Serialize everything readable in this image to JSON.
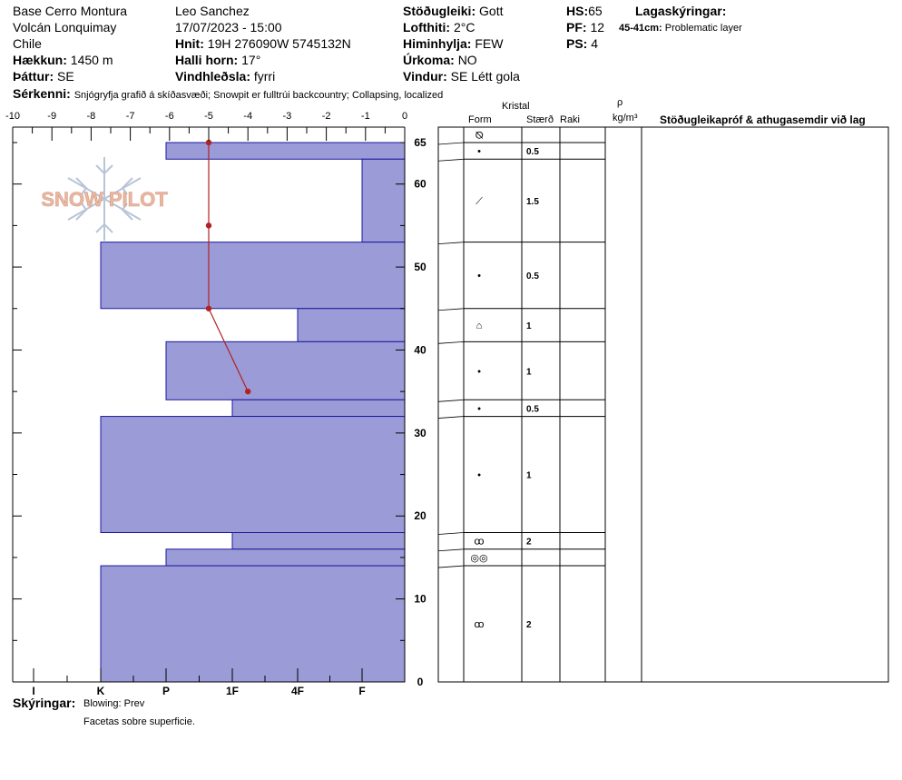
{
  "header": {
    "location": [
      "Base Cerro Montura",
      "Volcán Lonquimay",
      "Chile"
    ],
    "elevation_label": "Hækkun:",
    "elevation": "1450 m",
    "aspect_label": "Þáttur:",
    "aspect": "SE",
    "observer": "Leo Sanchez",
    "datetime": "17/07/2023 - 15:00",
    "coords_label": "Hnit:",
    "coords": "19H 276090W 5745132N",
    "slope_label": "Halli horn:",
    "slope": "17°",
    "wind_loading_label": "Vindhleðsla:",
    "wind_loading": "fyrri",
    "stability_label": "Stöðugleiki:",
    "stability": "Gott",
    "air_temp_label": "Lofthiti:",
    "air_temp": "2°C",
    "sky_label": "Himinhylja:",
    "sky": "FEW",
    "precip_label": "Úrkoma:",
    "precip": "NO",
    "wind_label": "Vindur:",
    "wind": "SE Létt gola",
    "hs_label": "HS:",
    "hs": "65",
    "pf_label": "PF:",
    "pf": "12",
    "ps_label": "PS:",
    "ps": "4",
    "layer_notes_label": "Lagaskýringar:",
    "layer_note_depth": "45-41cm:",
    "layer_note_text": "Problematic layer",
    "features_label": "Sérkenni:",
    "features": "Snjógryfja grafið á skíðasvæði; Snowpit er fulltrúi backcountry; Collapsing, localized"
  },
  "logo_text": "SNOW PILOT",
  "table_headers": {
    "kristal": "Kristal",
    "form": "Form",
    "size": "Stærð",
    "moisture": "Raki",
    "rho": "ρ",
    "density_unit": "kg/m³",
    "comments": "Stöðugleikapróf & athugasemdir við lag"
  },
  "footer": {
    "comments_label": "Skýringar:",
    "comment_lines": [
      "Blowing: Prev",
      "Facetas sobre superficie."
    ]
  },
  "chart_data": {
    "type": "bar",
    "top_axis": {
      "label_values": [
        -10,
        -9,
        -8,
        -7,
        -6,
        -5,
        -4,
        -3,
        -2,
        -1,
        0
      ]
    },
    "bottom_axis": {
      "ticks": [
        "I",
        "K",
        "P",
        "1F",
        "4F",
        "F"
      ]
    },
    "y_axis": {
      "range": [
        0,
        65
      ],
      "labels": [
        0,
        10,
        20,
        30,
        40,
        50,
        60,
        65
      ]
    },
    "hardness_layers": [
      {
        "bottom": 63,
        "top": 65,
        "hardness": "P"
      },
      {
        "bottom": 53,
        "top": 63,
        "hardness": "F"
      },
      {
        "bottom": 45,
        "top": 53,
        "hardness": "K"
      },
      {
        "bottom": 41,
        "top": 45,
        "hardness": "4F+"
      },
      {
        "bottom": 34,
        "top": 41,
        "hardness": "P"
      },
      {
        "bottom": 32,
        "top": 34,
        "hardness": "1F"
      },
      {
        "bottom": 18,
        "top": 32,
        "hardness": "K"
      },
      {
        "bottom": 16,
        "top": 18,
        "hardness": "1F"
      },
      {
        "bottom": 14,
        "top": 16,
        "hardness": "P"
      },
      {
        "bottom": 0,
        "top": 14,
        "hardness": "K"
      }
    ],
    "temperature_profile": [
      {
        "depth": 65,
        "temp": -5
      },
      {
        "depth": 55,
        "temp": -5
      },
      {
        "depth": 45,
        "temp": -5
      },
      {
        "depth": 35,
        "temp": -4
      }
    ],
    "crystal_layers": [
      {
        "bottom": 65,
        "top": 67,
        "form": "⦰",
        "size": ""
      },
      {
        "bottom": 63,
        "top": 65,
        "form": "•",
        "size": "0.5"
      },
      {
        "bottom": 53,
        "top": 63,
        "form": "⟋",
        "size": "1.5"
      },
      {
        "bottom": 45,
        "top": 53,
        "form": "•",
        "size": "0.5"
      },
      {
        "bottom": 41,
        "top": 45,
        "form": "⌂",
        "size": "1"
      },
      {
        "bottom": 34,
        "top": 41,
        "form": "•",
        "size": "1"
      },
      {
        "bottom": 32,
        "top": 34,
        "form": "•",
        "size": "0.5"
      },
      {
        "bottom": 18,
        "top": 32,
        "form": "•",
        "size": "1"
      },
      {
        "bottom": 16,
        "top": 18,
        "form": "ꝏ",
        "size": "2"
      },
      {
        "bottom": 14,
        "top": 16,
        "form": "◎◎",
        "size": ""
      },
      {
        "bottom": 0,
        "top": 14,
        "form": "ꝏ",
        "size": "2"
      }
    ],
    "colors": {
      "bar_fill": "#9b9bd7",
      "bar_stroke": "#1a1aa0",
      "temp_line": "#b22222"
    }
  }
}
